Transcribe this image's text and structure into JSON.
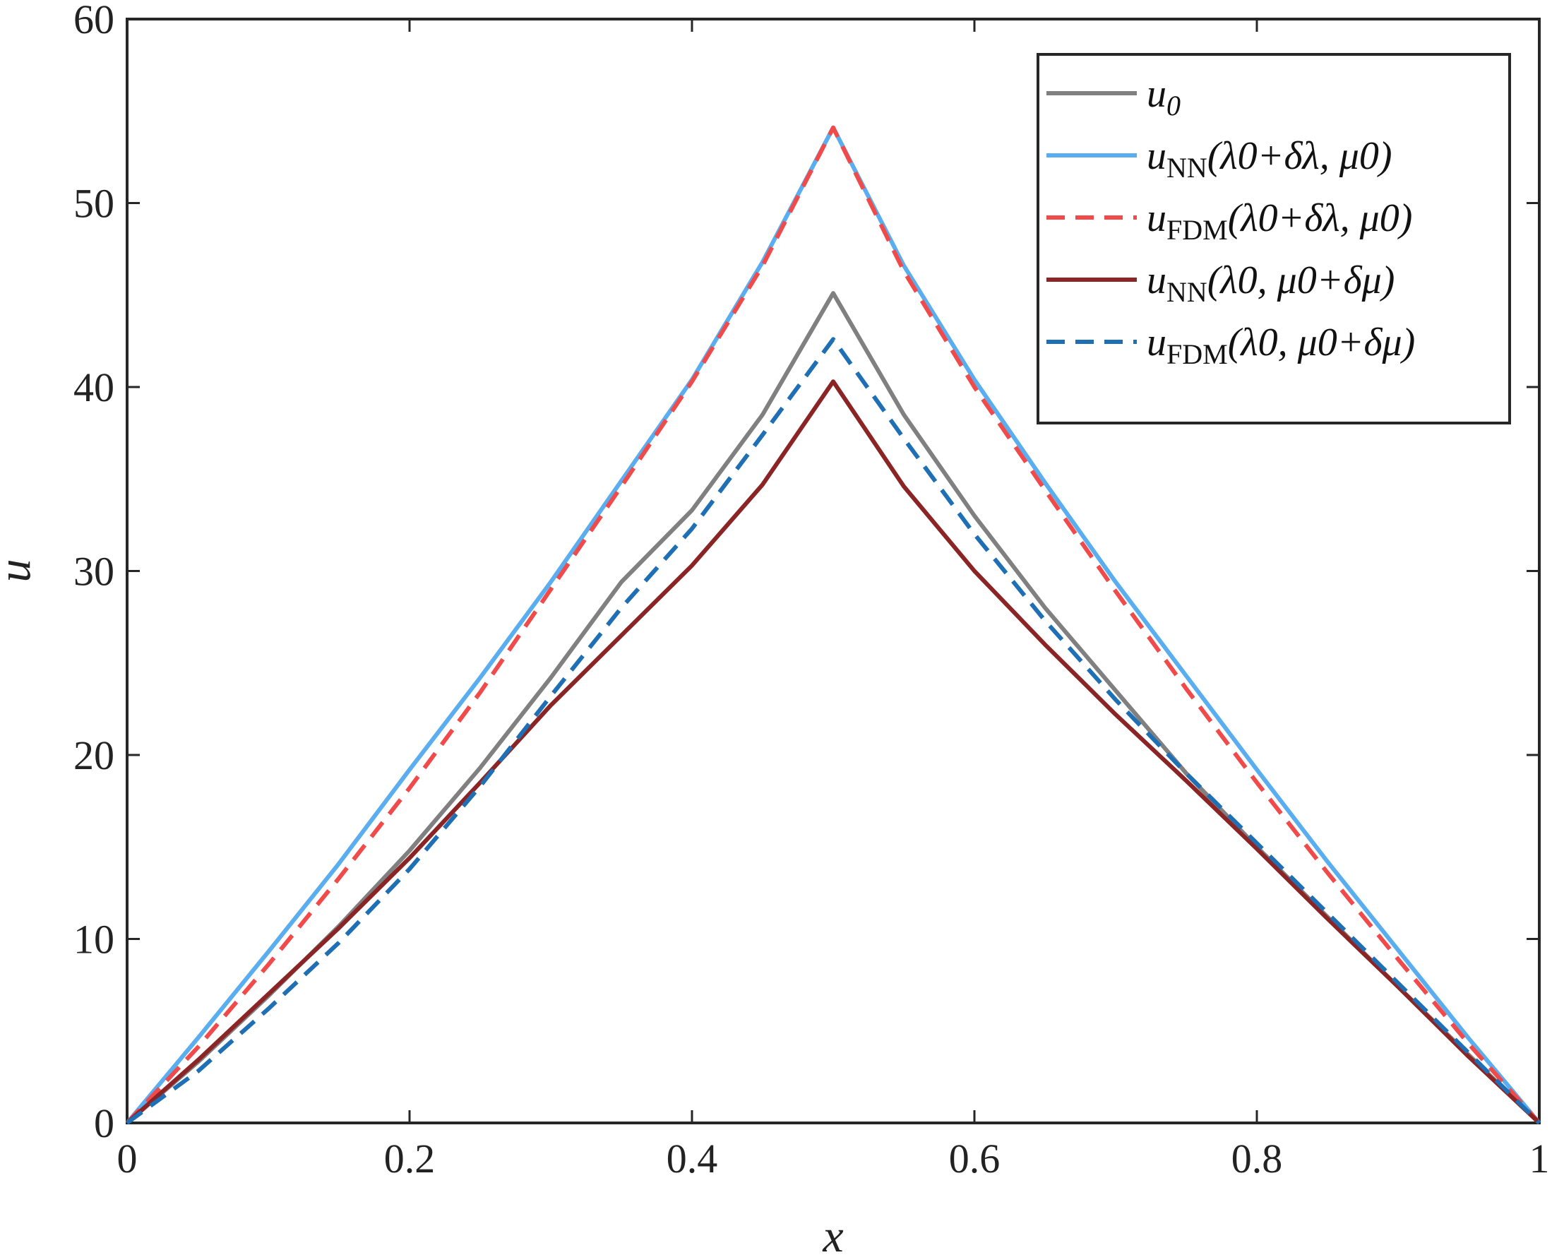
{
  "chart_data": {
    "type": "line",
    "title": "",
    "xlabel": "x",
    "ylabel": "u",
    "xlim": [
      0,
      1
    ],
    "ylim": [
      0,
      60
    ],
    "xticks": [
      "0",
      "0.2",
      "0.4",
      "0.6",
      "0.8",
      "1"
    ],
    "yticks": [
      "0",
      "10",
      "20",
      "30",
      "40",
      "50",
      "60"
    ],
    "grid": false,
    "legend_position": "top-right",
    "x": [
      0,
      0.05,
      0.1,
      0.15,
      0.2,
      0.25,
      0.3,
      0.35,
      0.4,
      0.45,
      0.5,
      0.55,
      0.6,
      0.65,
      0.7,
      0.75,
      0.8,
      0.85,
      0.9,
      0.95,
      1
    ],
    "series": [
      {
        "name": "u_0",
        "legend": {
          "base": "u",
          "sub": "0",
          "args": "",
          "italic_sub": true
        },
        "color": "#808080",
        "dash": "solid",
        "values": [
          0,
          3.3,
          6.9,
          10.7,
          14.8,
          19.3,
          24.2,
          29.4,
          33.3,
          38.5,
          45.1,
          38.5,
          33.0,
          28.0,
          23.5,
          19.0,
          15.0,
          11.2,
          7.4,
          3.7,
          0
        ]
      },
      {
        "name": "u_NN(λ0+δλ, μ0)",
        "legend": {
          "base": "u",
          "sub": "NN",
          "args": "(λ0+δλ,  μ0)",
          "italic_sub": false
        },
        "color": "#5aaef0",
        "dash": "solid",
        "values": [
          0,
          4.6,
          9.3,
          14.1,
          19.2,
          24.2,
          29.4,
          34.9,
          40.4,
          46.8,
          54.1,
          46.6,
          40.4,
          34.8,
          29.4,
          24.3,
          19.2,
          14.2,
          9.4,
          4.6,
          0
        ]
      },
      {
        "name": "u_FDM(λ0+δλ, μ0)",
        "legend": {
          "base": "u",
          "sub": "FDM",
          "args": "(λ0+δλ,  μ0)",
          "italic_sub": false
        },
        "color": "#f04a4a",
        "dash": "dashed",
        "values": [
          0,
          4.1,
          8.6,
          13.3,
          18.2,
          23.4,
          29.0,
          34.6,
          40.3,
          46.6,
          54.1,
          46.3,
          40.0,
          34.4,
          28.9,
          23.6,
          18.5,
          13.6,
          8.9,
          4.3,
          0
        ]
      },
      {
        "name": "u_NN(λ0, μ0+δμ)",
        "legend": {
          "base": "u",
          "sub": "NN",
          "args": "(λ0,  μ0+δμ)",
          "italic_sub": false
        },
        "color": "#8b2424",
        "dash": "solid",
        "values": [
          0,
          3.4,
          7.0,
          10.6,
          14.4,
          18.5,
          22.7,
          26.5,
          30.3,
          34.7,
          40.3,
          34.6,
          30.0,
          26.0,
          22.2,
          18.6,
          14.9,
          11.1,
          7.4,
          3.6,
          0
        ]
      },
      {
        "name": "u_FDM(λ0, μ0+δμ)",
        "legend": {
          "base": "u",
          "sub": "FDM",
          "args": "(λ0,  μ0+δμ)",
          "italic_sub": false
        },
        "color": "#1f6fb5",
        "dash": "dashed",
        "values": [
          0,
          2.8,
          6.2,
          9.8,
          13.8,
          18.3,
          23.2,
          28.0,
          32.3,
          37.4,
          42.6,
          37.2,
          32.0,
          27.3,
          23.0,
          19.0,
          15.2,
          11.4,
          7.6,
          3.8,
          0
        ]
      }
    ]
  }
}
